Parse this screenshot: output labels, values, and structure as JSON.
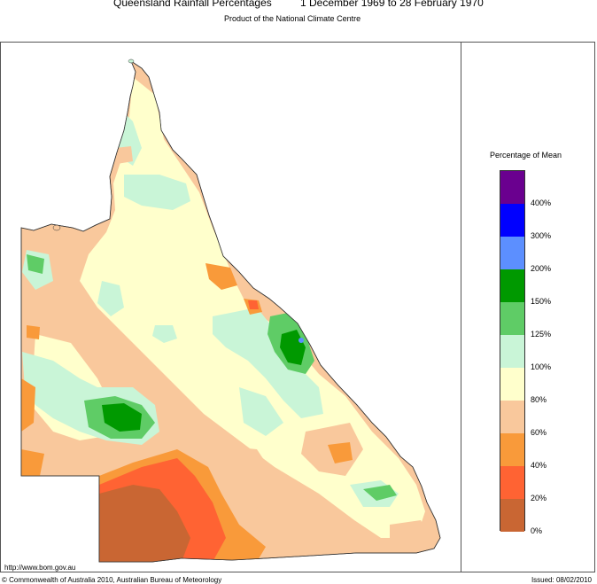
{
  "header": {
    "title": "Queensland Rainfall Percentages",
    "period": "1 December 1969 to 28 February 1970",
    "subtitle": "Product of the National Climate Centre"
  },
  "legend": {
    "title": "Percentage of Mean",
    "bins": [
      {
        "label": "400%",
        "color": "#6a008f"
      },
      {
        "label": "300%",
        "color": "#0000ff"
      },
      {
        "label": "200%",
        "color": "#5c8fff"
      },
      {
        "label": "150%",
        "color": "#009900"
      },
      {
        "label": "125%",
        "color": "#5fcc66"
      },
      {
        "label": "100%",
        "color": "#c9f5d7"
      },
      {
        "label": "80%",
        "color": "#ffffcc"
      },
      {
        "label": "60%",
        "color": "#f9c89c"
      },
      {
        "label": "40%",
        "color": "#f99a3a"
      },
      {
        "label": "20%",
        "color": "#ff6333"
      },
      {
        "label": "0%",
        "color": "#c96633"
      }
    ]
  },
  "footer": {
    "url": "http://www.bom.gov.au",
    "copyright": "© Commonwealth of Australia 2010, Australian Bureau of Meteorology",
    "issued": "Issued: 08/02/2010"
  }
}
